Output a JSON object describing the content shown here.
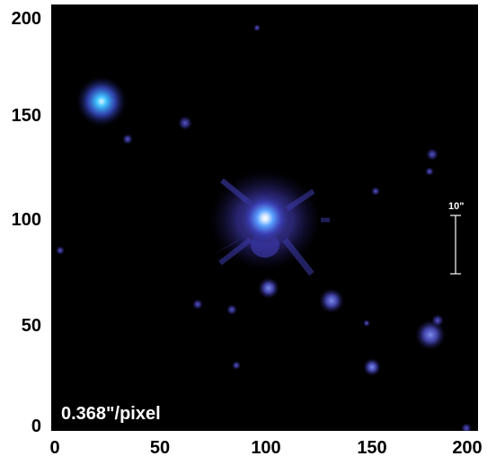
{
  "image": {
    "pixel_scale_label": "0.368\"/pixel",
    "scale_bar_label": "10\"",
    "background_color": "#000000",
    "star_color": "#3a4fd0",
    "core_color": "#ffffff"
  },
  "axes": {
    "x_ticks": [
      "0",
      "50",
      "100",
      "150",
      "200"
    ],
    "y_ticks": [
      "200",
      "150",
      "100",
      "50",
      "0"
    ]
  }
}
